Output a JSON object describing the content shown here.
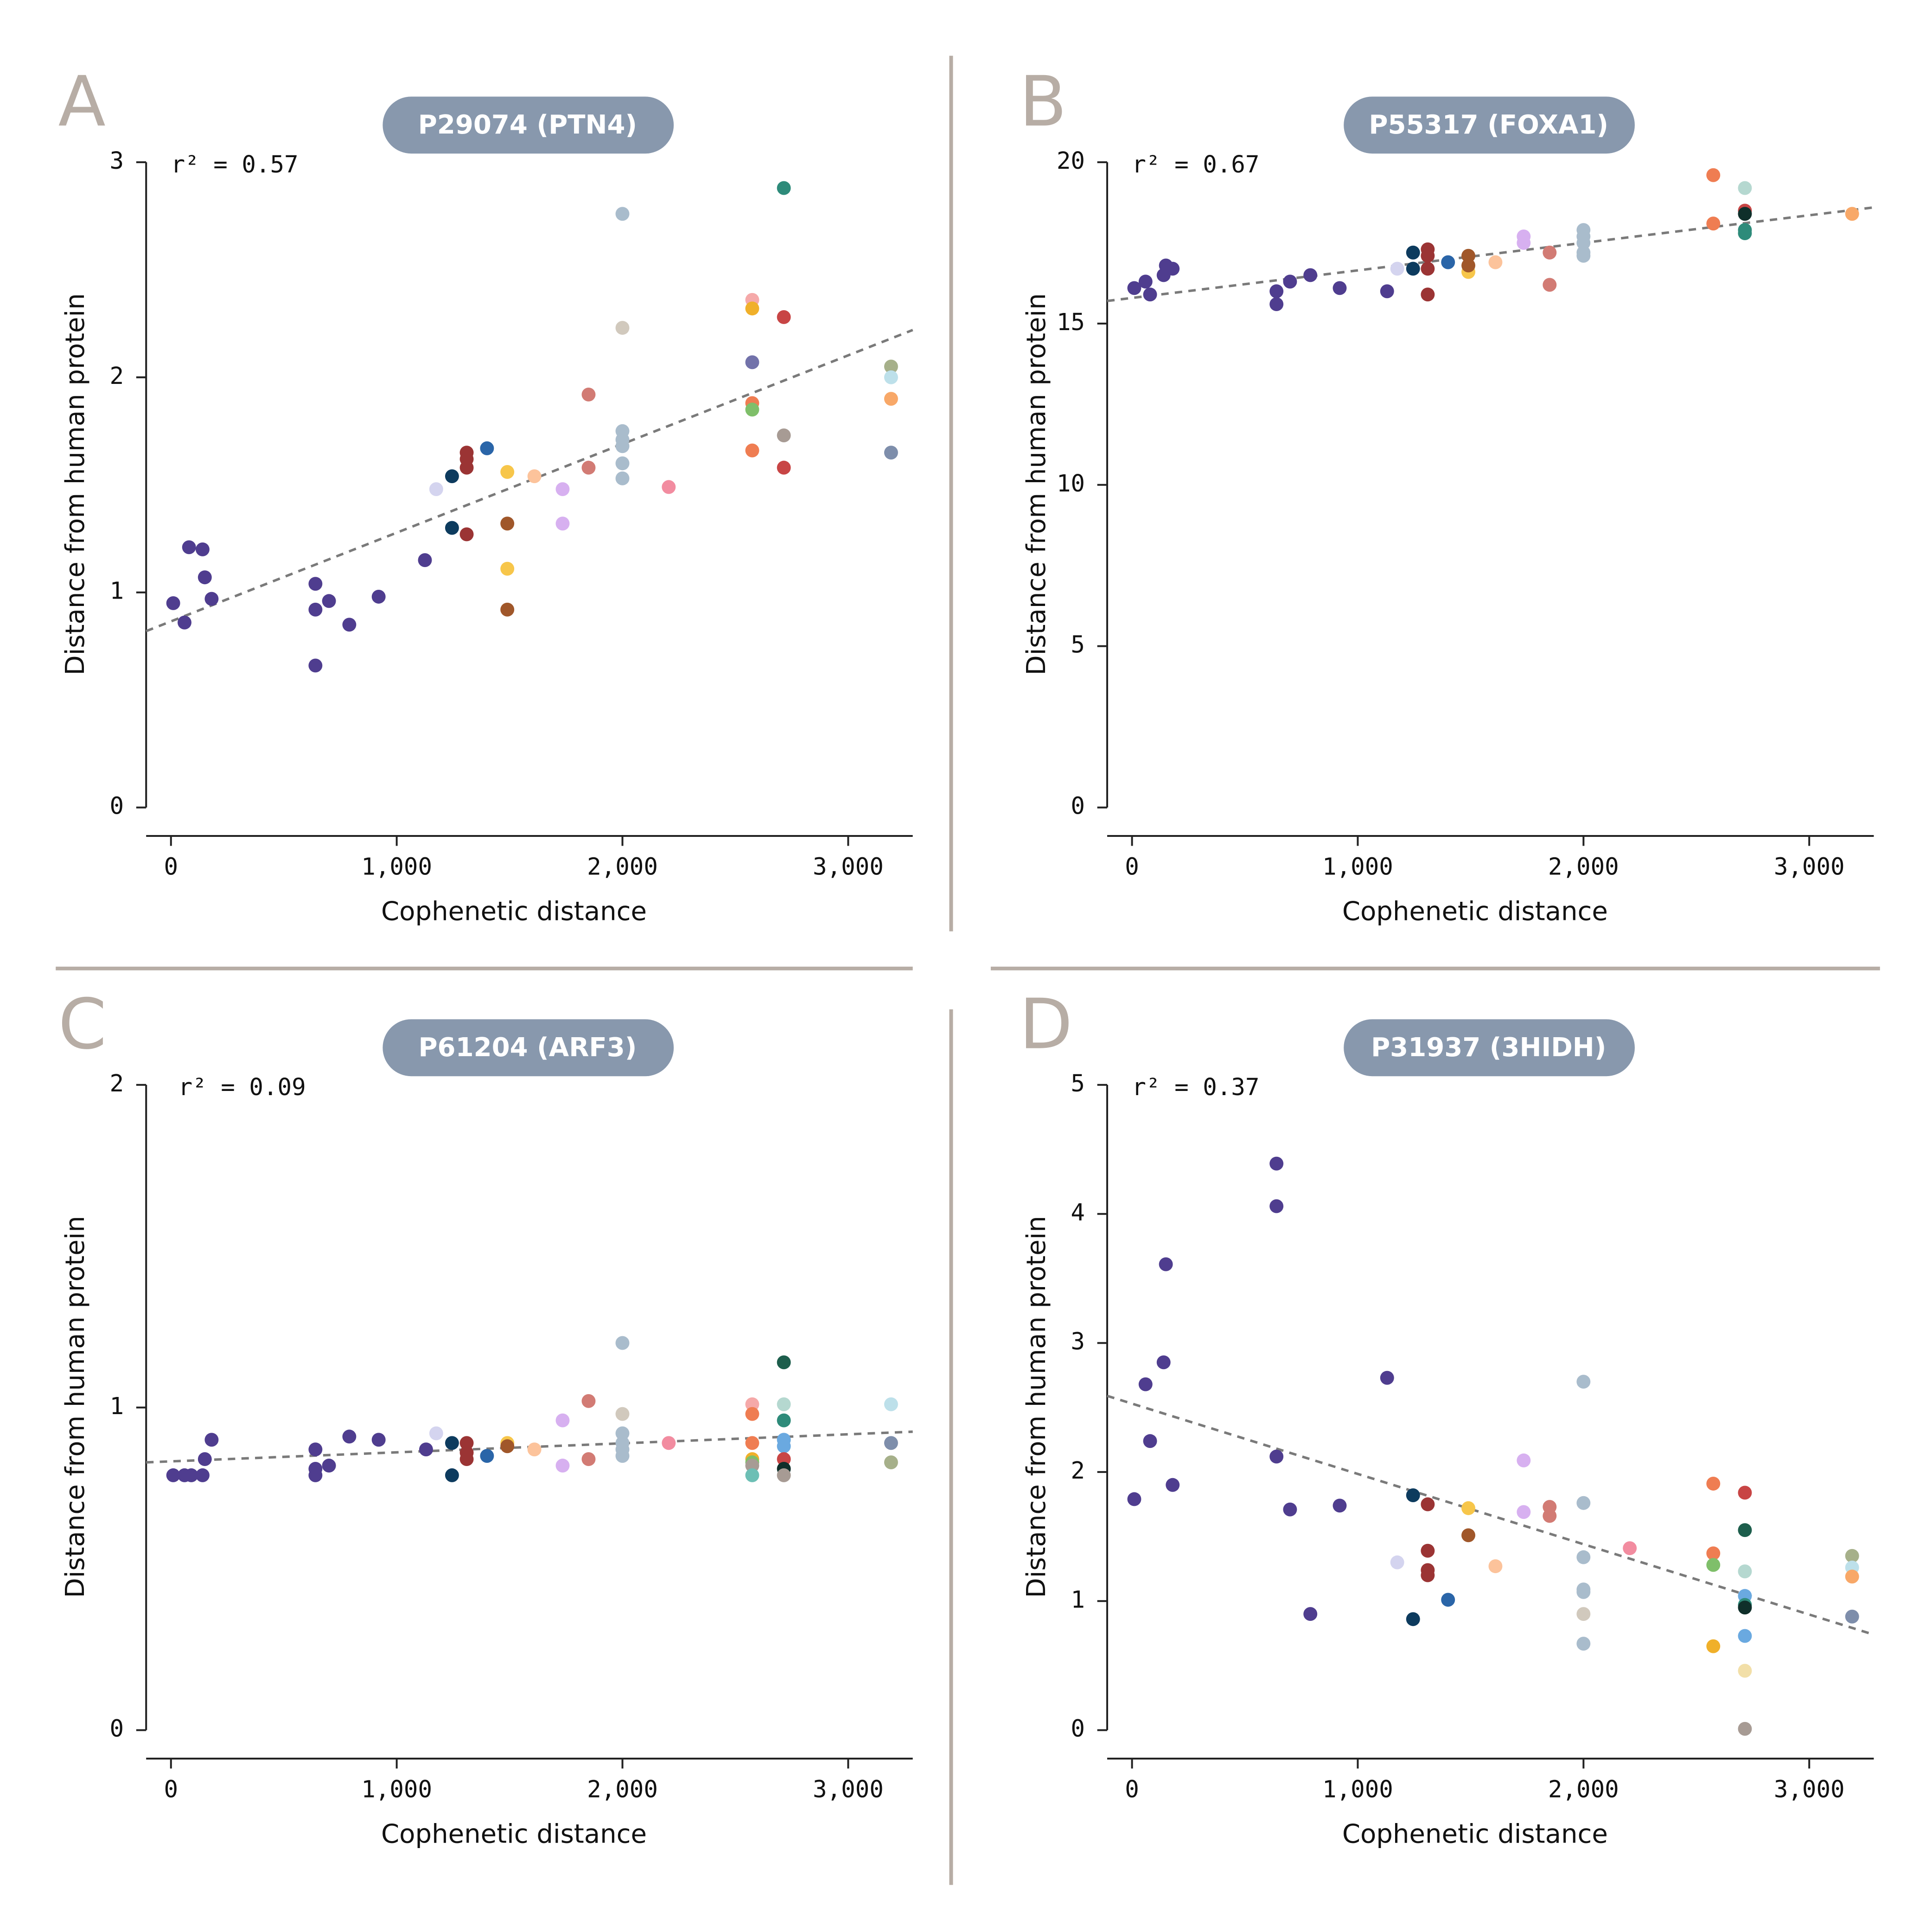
{
  "chart_data": [
    {
      "type": "scatter",
      "letter": "A",
      "title": "P29074 (PTN4)",
      "annotation": "r² = 0.57",
      "xlabel": "Cophenetic distance",
      "ylabel": "Distance from human protein",
      "xlim": [
        -110,
        3286
      ],
      "ylim": [
        0,
        3
      ],
      "yticks": [
        0,
        1,
        2,
        3
      ],
      "xticks": [
        0,
        {
          "value": 1000,
          "label": "1,000"
        },
        {
          "value": 2000,
          "label": "2,000"
        },
        {
          "value": 3000,
          "label": "3,000"
        }
      ],
      "x": [
        10,
        60,
        80,
        140,
        150,
        180,
        640,
        640,
        640,
        700,
        790,
        920,
        1125,
        1175,
        1245,
        1245,
        1310,
        1310,
        1310,
        1310,
        1400,
        1490,
        1490,
        1490,
        1490,
        1610,
        1735,
        1735,
        1850,
        1850,
        2000,
        2000,
        2000,
        2000,
        2000,
        2000,
        2000,
        2205,
        2575,
        2575,
        2575,
        2575,
        2575,
        2575,
        2715,
        2715,
        2715,
        2715,
        3190,
        3190,
        3190,
        3190
      ],
      "values": [
        0.95,
        0.86,
        1.21,
        1.2,
        1.07,
        0.97,
        1.04,
        0.92,
        0.66,
        0.96,
        0.85,
        0.98,
        1.15,
        1.48,
        1.54,
        1.3,
        1.65,
        1.62,
        1.58,
        1.27,
        1.67,
        1.56,
        1.11,
        1.32,
        0.92,
        1.54,
        1.48,
        1.32,
        1.92,
        1.58,
        2.76,
        1.75,
        1.71,
        1.68,
        1.6,
        1.53,
        2.23,
        1.49,
        2.36,
        2.32,
        1.88,
        1.66,
        1.85,
        2.07,
        2.28,
        1.58,
        2.88,
        1.73,
        2.05,
        2.0,
        1.9,
        1.65
      ],
      "colors": [
        "#4f3d8f",
        "#4f3d8f",
        "#4f3d8f",
        "#4f3d8f",
        "#4f3d8f",
        "#4f3d8f",
        "#4f3d8f",
        "#4f3d8f",
        "#4f3d8f",
        "#4f3d8f",
        "#4f3d8f",
        "#4f3d8f",
        "#4f3d8f",
        "#d4d4ef",
        "#0d3b5e",
        "#0d3b5e",
        "#9b3434",
        "#9b3434",
        "#9b3434",
        "#9b3434",
        "#2a65a8",
        "#f7c64a",
        "#f7c64a",
        "#a0572a",
        "#a0572a",
        "#fcc39b",
        "#d7b0f0",
        "#d7b0f0",
        "#d27b74",
        "#d27b74",
        "#a9bccc",
        "#a9bccc",
        "#a9bccc",
        "#a9bccc",
        "#a9bccc",
        "#a9bccc",
        "#d1c9bd",
        "#f28ca0",
        "#f5a9a9",
        "#f0b02a",
        "#ef7d52",
        "#ef7d52",
        "#7fbf6a",
        "#7272aa",
        "#c84545",
        "#c84545",
        "#2e8b7a",
        "#a79b94",
        "#a6b08a",
        "#bde0ea",
        "#f8a868",
        "#7e8eab"
      ],
      "trendline": {
        "x": [
          -110,
          3286
        ],
        "y": [
          0.82,
          2.22
        ]
      }
    },
    {
      "type": "scatter",
      "letter": "B",
      "title": "P55317 (FOXA1)",
      "annotation": "r² = 0.67",
      "xlabel": "Cophenetic distance",
      "ylabel": "Distance from human protein",
      "xlim": [
        -110,
        3286
      ],
      "ylim": [
        0,
        20
      ],
      "yticks": [
        0,
        5,
        10,
        15,
        20
      ],
      "xticks": [
        0,
        {
          "value": 1000,
          "label": "1,000"
        },
        {
          "value": 2000,
          "label": "2,000"
        },
        {
          "value": 3000,
          "label": "3,000"
        }
      ],
      "x": [
        10,
        60,
        80,
        140,
        150,
        180,
        640,
        640,
        700,
        790,
        920,
        1130,
        1175,
        1245,
        1245,
        1310,
        1310,
        1310,
        1310,
        1400,
        1490,
        1490,
        1490,
        1610,
        1735,
        1735,
        1850,
        1850,
        2000,
        2000,
        2000,
        2000,
        2000,
        2575,
        2575,
        2715,
        2715,
        2715,
        2715,
        2715,
        3190
      ],
      "values": [
        16.1,
        16.3,
        15.9,
        16.5,
        16.8,
        16.7,
        16.0,
        15.6,
        16.3,
        16.5,
        16.1,
        16.0,
        16.7,
        17.2,
        16.7,
        17.3,
        17.1,
        16.7,
        15.9,
        16.9,
        16.6,
        17.1,
        16.8,
        16.9,
        17.7,
        17.5,
        17.2,
        16.2,
        17.9,
        17.7,
        17.5,
        17.2,
        17.1,
        19.6,
        18.1,
        18.5,
        19.2,
        18.4,
        17.9,
        17.8,
        18.4
      ],
      "colors": [
        "#4f3d8f",
        "#4f3d8f",
        "#4f3d8f",
        "#4f3d8f",
        "#4f3d8f",
        "#4f3d8f",
        "#4f3d8f",
        "#4f3d8f",
        "#4f3d8f",
        "#4f3d8f",
        "#4f3d8f",
        "#4f3d8f",
        "#d4d4ef",
        "#0d3b5e",
        "#0d3b5e",
        "#9b3434",
        "#9b3434",
        "#9b3434",
        "#9b3434",
        "#2a65a8",
        "#f7c64a",
        "#a0572a",
        "#a0572a",
        "#fcc39b",
        "#d7b0f0",
        "#d7b0f0",
        "#d27b74",
        "#d27b74",
        "#a9bccc",
        "#a9bccc",
        "#a9bccc",
        "#a9bccc",
        "#a9bccc",
        "#ef7d52",
        "#ef7d52",
        "#c84545",
        "#b5d8d0",
        "#0f2f2a",
        "#2e8b7a",
        "#2e8b7a",
        "#f8a868"
      ],
      "trendline": {
        "x": [
          -110,
          3286
        ],
        "y": [
          15.7,
          18.6
        ]
      }
    },
    {
      "type": "scatter",
      "letter": "C",
      "title": "P61204 (ARF3)",
      "annotation": "r² = 0.09",
      "xlabel": "Cophenetic distance",
      "ylabel": "Distance from human protein",
      "xlim": [
        -110,
        3286
      ],
      "ylim": [
        0,
        2
      ],
      "yticks": [
        0,
        1,
        2
      ],
      "xticks": [
        0,
        {
          "value": 1000,
          "label": "1,000"
        },
        {
          "value": 2000,
          "label": "2,000"
        },
        {
          "value": 3000,
          "label": "3,000"
        }
      ],
      "x": [
        10,
        60,
        90,
        140,
        150,
        180,
        640,
        640,
        640,
        700,
        790,
        920,
        1130,
        1175,
        1245,
        1245,
        1310,
        1310,
        1310,
        1400,
        1490,
        1490,
        1610,
        1735,
        1735,
        1850,
        1850,
        2000,
        2000,
        2000,
        2000,
        2000,
        2000,
        2205,
        2575,
        2575,
        2575,
        2575,
        2575,
        2575,
        2575,
        2715,
        2715,
        2715,
        2715,
        2715,
        2715,
        2715,
        2715,
        3190,
        3190,
        3190
      ],
      "values": [
        0.79,
        0.79,
        0.79,
        0.79,
        0.84,
        0.9,
        0.87,
        0.81,
        0.79,
        0.82,
        0.91,
        0.9,
        0.87,
        0.92,
        0.89,
        0.79,
        0.89,
        0.86,
        0.84,
        0.85,
        0.89,
        0.88,
        0.87,
        0.96,
        0.82,
        1.02,
        0.84,
        0.98,
        1.2,
        0.92,
        0.89,
        0.87,
        0.85,
        0.89,
        1.01,
        0.98,
        0.89,
        0.84,
        0.83,
        0.82,
        0.79,
        1.14,
        1.01,
        0.96,
        0.9,
        0.88,
        0.84,
        0.81,
        0.79,
        1.01,
        0.89,
        0.83
      ],
      "colors": [
        "#4f3d8f",
        "#4f3d8f",
        "#4f3d8f",
        "#4f3d8f",
        "#4f3d8f",
        "#4f3d8f",
        "#4f3d8f",
        "#4f3d8f",
        "#4f3d8f",
        "#4f3d8f",
        "#4f3d8f",
        "#4f3d8f",
        "#4f3d8f",
        "#d4d4ef",
        "#0d3b5e",
        "#0d3b5e",
        "#9b3434",
        "#9b3434",
        "#9b3434",
        "#2a65a8",
        "#f7c64a",
        "#a0572a",
        "#fcc39b",
        "#d7b0f0",
        "#d7b0f0",
        "#d27b74",
        "#d27b74",
        "#d1c9bd",
        "#a9bccc",
        "#a9bccc",
        "#a9bccc",
        "#a9bccc",
        "#a9bccc",
        "#f28ca0",
        "#f5a9a9",
        "#ef7d52",
        "#ef7d52",
        "#f0b02a",
        "#7fbf6a",
        "#a79b94",
        "#6dbfb5",
        "#1d5e4c",
        "#b5d8d0",
        "#2e8b7a",
        "#6aa9e0",
        "#6aa9e0",
        "#c84545",
        "#0f2f2a",
        "#a79b94",
        "#bde0ea",
        "#7e8eab",
        "#a6b08a"
      ],
      "trendline": {
        "x": [
          -110,
          3286
        ],
        "y": [
          0.83,
          0.925
        ]
      }
    },
    {
      "type": "scatter",
      "letter": "D",
      "title": "P31937 (3HIDH)",
      "annotation": "r² = 0.37",
      "xlabel": "Cophenetic distance",
      "ylabel": "Distance from human protein",
      "xlim": [
        -110,
        3286
      ],
      "ylim": [
        0,
        5
      ],
      "yticks": [
        0,
        1,
        2,
        3,
        4,
        5
      ],
      "xticks": [
        0,
        {
          "value": 1000,
          "label": "1,000"
        },
        {
          "value": 2000,
          "label": "2,000"
        },
        {
          "value": 3000,
          "label": "3,000"
        }
      ],
      "x": [
        10,
        60,
        80,
        140,
        150,
        180,
        640,
        640,
        640,
        700,
        790,
        920,
        1130,
        1175,
        1245,
        1245,
        1310,
        1310,
        1310,
        1310,
        1400,
        1490,
        1490,
        1610,
        1735,
        1735,
        1850,
        1850,
        2000,
        2000,
        2000,
        2000,
        2000,
        2000,
        2000,
        2205,
        2575,
        2575,
        2575,
        2575,
        2715,
        2715,
        2715,
        2715,
        2715,
        2715,
        2715,
        2715,
        2715,
        3190,
        3190,
        3190,
        3190
      ],
      "values": [
        1.79,
        2.68,
        2.24,
        2.85,
        3.61,
        1.9,
        4.39,
        4.06,
        2.12,
        1.71,
        0.9,
        1.74,
        2.73,
        1.3,
        1.82,
        0.86,
        1.75,
        1.39,
        1.24,
        1.2,
        1.01,
        1.72,
        1.51,
        1.27,
        2.09,
        1.69,
        1.73,
        1.66,
        2.7,
        1.76,
        1.34,
        1.09,
        1.07,
        0.67,
        0.9,
        1.41,
        1.91,
        1.37,
        1.28,
        0.65,
        1.84,
        1.55,
        1.23,
        1.04,
        0.73,
        0.97,
        0.95,
        0.46,
        0.01,
        1.35,
        1.26,
        1.19,
        0.88
      ],
      "colors": [
        "#4f3d8f",
        "#4f3d8f",
        "#4f3d8f",
        "#4f3d8f",
        "#4f3d8f",
        "#4f3d8f",
        "#4f3d8f",
        "#4f3d8f",
        "#4f3d8f",
        "#4f3d8f",
        "#4f3d8f",
        "#4f3d8f",
        "#4f3d8f",
        "#d4d4ef",
        "#0d3b5e",
        "#0d3b5e",
        "#9b3434",
        "#9b3434",
        "#9b3434",
        "#9b3434",
        "#2a65a8",
        "#f7c64a",
        "#a0572a",
        "#fcc39b",
        "#d7b0f0",
        "#d7b0f0",
        "#d27b74",
        "#d27b74",
        "#a9bccc",
        "#a9bccc",
        "#a9bccc",
        "#a9bccc",
        "#a9bccc",
        "#a9bccc",
        "#d1c9bd",
        "#f28ca0",
        "#ef7d52",
        "#ef7d52",
        "#7fbf6a",
        "#f0b02a",
        "#c84545",
        "#1d5e4c",
        "#b5d8d0",
        "#6aa9e0",
        "#6aa9e0",
        "#2e8b7a",
        "#0f2f2a",
        "#f2dfa8",
        "#a79b94",
        "#a6b08a",
        "#bde0ea",
        "#f8a868",
        "#7e8eab"
      ],
      "trendline": {
        "x": [
          -110,
          3286
        ],
        "y": [
          2.59,
          0.74
        ]
      }
    }
  ]
}
